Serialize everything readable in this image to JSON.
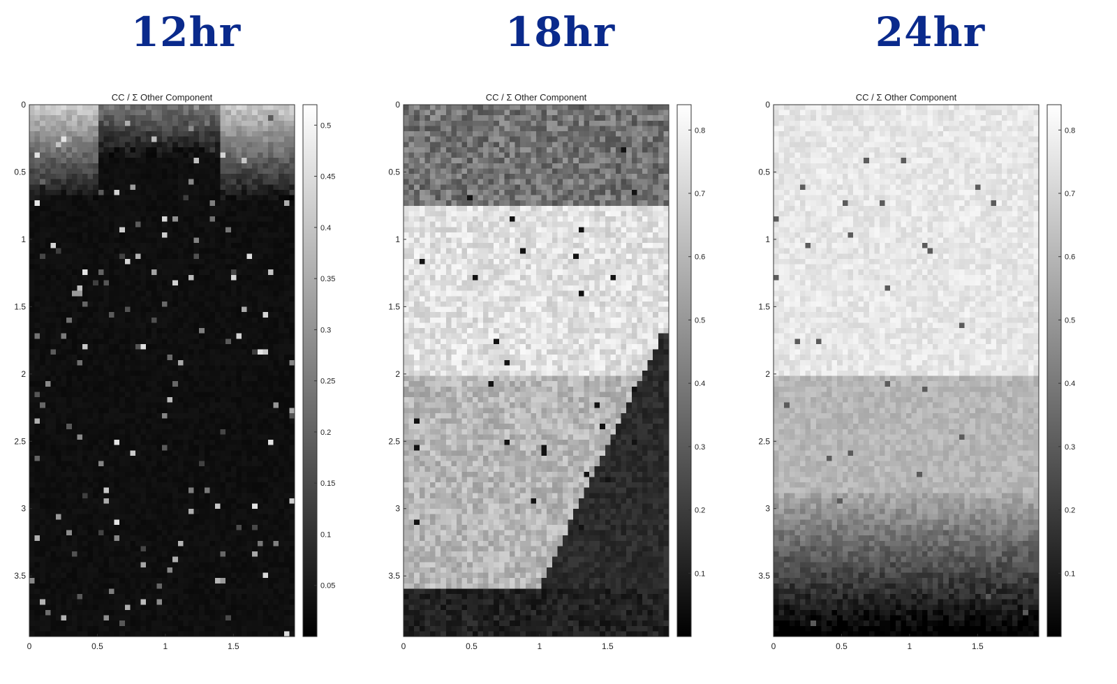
{
  "chart_data": [
    {
      "type": "heatmap",
      "panel_title": "12hr",
      "title": "CC / Σ Other Component",
      "xlim": [
        0,
        1.95
      ],
      "ylim": [
        0,
        3.95
      ],
      "xticks": [
        0,
        0.5,
        1,
        1.5
      ],
      "yticks": [
        0,
        0.5,
        1,
        1.5,
        2,
        2.5,
        3,
        3.5
      ],
      "colorbar": {
        "range": [
          0,
          0.52
        ],
        "ticks": [
          0.05,
          0.1,
          0.15,
          0.2,
          0.25,
          0.3,
          0.35,
          0.4,
          0.45,
          0.5
        ]
      },
      "colormap": "gray",
      "pattern": "bright region along top edge (values ~0.3–0.45) fading to near 0 below y≈0.9; sparse bright outlier pixels elsewhere"
    },
    {
      "type": "heatmap",
      "panel_title": "18hr",
      "title": "CC / Σ Other Component",
      "xlim": [
        0,
        1.95
      ],
      "ylim": [
        0,
        3.95
      ],
      "xticks": [
        0,
        0.5,
        1,
        1.5
      ],
      "yticks": [
        0,
        0.5,
        1,
        1.5,
        2,
        2.5,
        3,
        3.5
      ],
      "colorbar": {
        "range": [
          0,
          0.84
        ],
        "ticks": [
          0.1,
          0.2,
          0.3,
          0.4,
          0.5,
          0.6,
          0.7,
          0.8
        ]
      },
      "colormap": "gray",
      "pattern": "mid values (~0.4) for y<0.75, bright (~0.75) band 0.75–2.0, mid-bright (~0.6) in lower-left wedge, dark (~0.05–0.15) lower-right triangle and bottom edge"
    },
    {
      "type": "heatmap",
      "panel_title": "24hr",
      "title": "CC / Σ Other Component",
      "xlim": [
        0,
        1.95
      ],
      "ylim": [
        0,
        3.95
      ],
      "xticks": [
        0,
        0.5,
        1,
        1.5
      ],
      "yticks": [
        0,
        0.5,
        1,
        1.5,
        2,
        2.5,
        3,
        3.5
      ],
      "colorbar": {
        "range": [
          0,
          0.84
        ],
        "ticks": [
          0.1,
          0.2,
          0.3,
          0.4,
          0.5,
          0.6,
          0.7,
          0.8
        ]
      },
      "colormap": "gray",
      "pattern": "bright (~0.75) for y<2.0, mid-bright (~0.6) 2.0–2.9, decreasing to dark (~0.05) toward bottom edge"
    }
  ]
}
